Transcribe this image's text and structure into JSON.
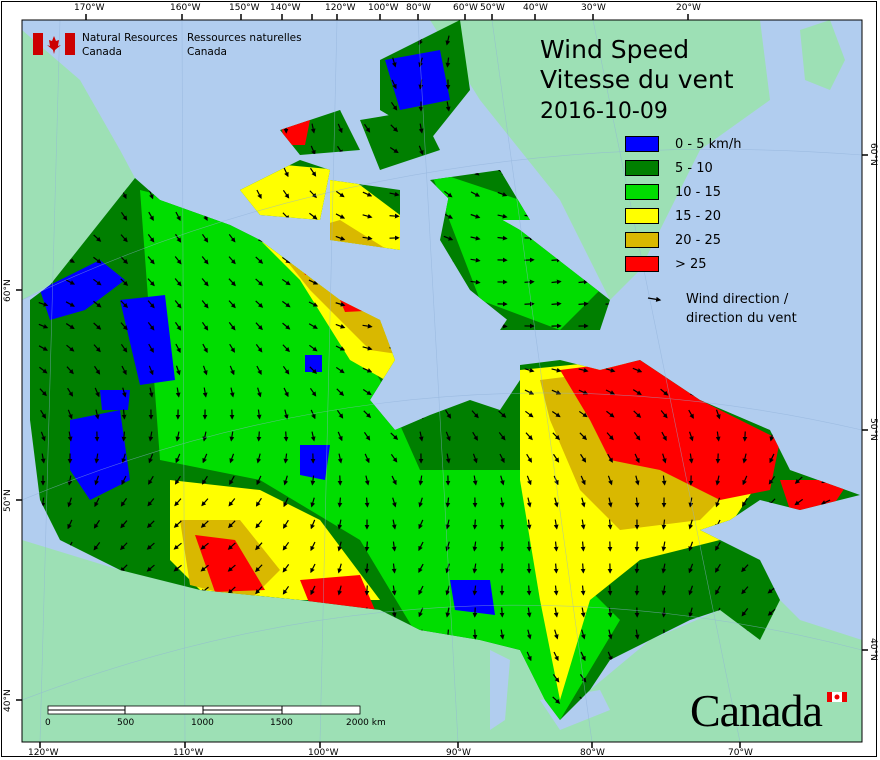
{
  "header": {
    "org_en": [
      "Natural Resources",
      "Canada"
    ],
    "org_fr": [
      "Ressources naturelles",
      "Canada"
    ]
  },
  "title": {
    "en": "Wind Speed",
    "fr": "Vitesse du vent",
    "date": "2016-10-09"
  },
  "legend": {
    "items": [
      {
        "label": "0 - 5 km/h",
        "color": "#0000ff"
      },
      {
        "label": "5 - 10",
        "color": "#007f00"
      },
      {
        "label": "10 - 15",
        "color": "#00dd00"
      },
      {
        "label": "15 - 20",
        "color": "#ffff00"
      },
      {
        "label": "20 - 25",
        "color": "#d9b800"
      },
      {
        "label": "> 25",
        "color": "#ff0000"
      }
    ],
    "direction_label": [
      "Wind direction /",
      "direction du vent"
    ]
  },
  "scale_bar": {
    "labels": [
      "0",
      "500",
      "1000",
      "1500",
      "2000 km"
    ]
  },
  "graticule": {
    "top": [
      "170°W",
      "160°W",
      "150°W",
      "140°W",
      "120°W",
      "100°W",
      "80°W",
      "60°W",
      "50°W",
      "40°W",
      "30°W",
      "20°W"
    ],
    "bottom": [
      "120°W",
      "110°W",
      "100°W",
      "90°W",
      "80°W",
      "70°W"
    ],
    "left": [
      "60°N",
      "50°N",
      "40°N"
    ],
    "right": [
      "60°N",
      "50°N",
      "40°N"
    ]
  },
  "wordmark": "Canada",
  "colors": {
    "water": "#b1cdef",
    "land": "#9de0b5"
  }
}
